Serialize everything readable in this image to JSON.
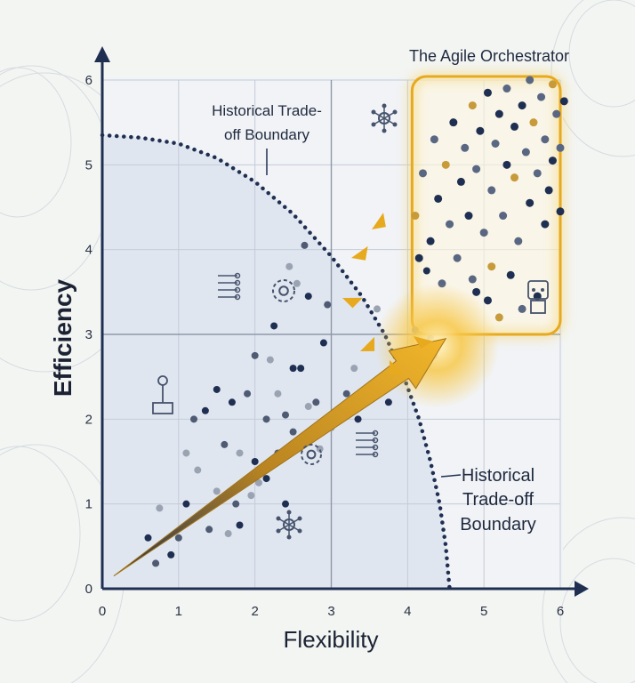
{
  "chart_data": {
    "type": "scatter",
    "xlabel": "Flexibility",
    "ylabel": "Efficiency",
    "xlim": [
      0,
      6
    ],
    "ylim": [
      0,
      6
    ],
    "xticks": [
      "0",
      "1",
      "2",
      "3",
      "4",
      "5",
      "6"
    ],
    "yticks": [
      "0",
      "1",
      "2",
      "3",
      "4",
      "5",
      "6"
    ],
    "grid": true,
    "annotations": [
      {
        "id": "boundary-top",
        "lines": [
          "Historical Trade-",
          "off Boundary"
        ]
      },
      {
        "id": "boundary-right",
        "lines": [
          "Historical",
          "Trade-off",
          "Boundary"
        ]
      },
      {
        "id": "highlight",
        "lines": [
          "The Agile Orchestrator"
        ]
      }
    ],
    "boundary": {
      "name": "Historical Trade-off Boundary",
      "points": [
        [
          0,
          5.35
        ],
        [
          0.5,
          5.32
        ],
        [
          1,
          5.25
        ],
        [
          1.5,
          5.08
        ],
        [
          2,
          4.8
        ],
        [
          2.5,
          4.42
        ],
        [
          3,
          3.92
        ],
        [
          3.4,
          3.45
        ],
        [
          3.7,
          3.0
        ],
        [
          3.95,
          2.5
        ],
        [
          4.15,
          2.0
        ],
        [
          4.3,
          1.5
        ],
        [
          4.42,
          1.0
        ],
        [
          4.5,
          0.5
        ],
        [
          4.55,
          0
        ]
      ]
    },
    "highlight_region": {
      "label": "The Agile Orchestrator",
      "x": [
        4.0,
        6.0
      ],
      "y": [
        3.0,
        6.0
      ]
    },
    "trend_arrow": {
      "from": [
        0.15,
        0.15
      ],
      "to": [
        4.5,
        2.95
      ]
    },
    "scattered_points": [
      {
        "x": 0.6,
        "y": 0.6
      },
      {
        "x": 0.7,
        "y": 0.3
      },
      {
        "x": 0.75,
        "y": 0.95
      },
      {
        "x": 0.9,
        "y": 0.4
      },
      {
        "x": 1.0,
        "y": 0.6
      },
      {
        "x": 1.1,
        "y": 1.6
      },
      {
        "x": 1.1,
        "y": 1.0
      },
      {
        "x": 1.2,
        "y": 2.0
      },
      {
        "x": 1.25,
        "y": 1.4
      },
      {
        "x": 1.35,
        "y": 2.1
      },
      {
        "x": 1.4,
        "y": 0.7
      },
      {
        "x": 1.5,
        "y": 1.15
      },
      {
        "x": 1.5,
        "y": 2.35
      },
      {
        "x": 1.6,
        "y": 1.7
      },
      {
        "x": 1.65,
        "y": 0.65
      },
      {
        "x": 1.7,
        "y": 2.2
      },
      {
        "x": 1.75,
        "y": 1.0
      },
      {
        "x": 1.8,
        "y": 1.6
      },
      {
        "x": 1.8,
        "y": 0.75
      },
      {
        "x": 1.9,
        "y": 2.3
      },
      {
        "x": 1.95,
        "y": 1.1
      },
      {
        "x": 2.0,
        "y": 1.5
      },
      {
        "x": 2.0,
        "y": 2.75
      },
      {
        "x": 2.05,
        "y": 1.25
      },
      {
        "x": 2.15,
        "y": 1.3
      },
      {
        "x": 2.15,
        "y": 2.0
      },
      {
        "x": 2.2,
        "y": 2.7
      },
      {
        "x": 2.25,
        "y": 3.1
      },
      {
        "x": 2.3,
        "y": 1.6
      },
      {
        "x": 2.3,
        "y": 2.3
      },
      {
        "x": 2.4,
        "y": 1.0
      },
      {
        "x": 2.4,
        "y": 2.05
      },
      {
        "x": 2.45,
        "y": 3.8
      },
      {
        "x": 2.5,
        "y": 2.6
      },
      {
        "x": 2.5,
        "y": 1.85
      },
      {
        "x": 2.55,
        "y": 3.6
      },
      {
        "x": 2.6,
        "y": 2.6
      },
      {
        "x": 2.65,
        "y": 4.05
      },
      {
        "x": 2.7,
        "y": 2.15
      },
      {
        "x": 2.7,
        "y": 3.45
      },
      {
        "x": 2.8,
        "y": 2.2
      },
      {
        "x": 2.85,
        "y": 1.65
      },
      {
        "x": 2.9,
        "y": 2.9
      },
      {
        "x": 2.95,
        "y": 3.35
      },
      {
        "x": 3.0,
        "y": 1.9
      },
      {
        "x": 3.1,
        "y": 2.1
      },
      {
        "x": 3.2,
        "y": 2.3
      },
      {
        "x": 3.3,
        "y": 2.6
      },
      {
        "x": 3.35,
        "y": 2.0
      },
      {
        "x": 3.5,
        "y": 2.85
      },
      {
        "x": 3.6,
        "y": 3.3
      },
      {
        "x": 3.75,
        "y": 2.2
      },
      {
        "x": 4.35,
        "y": 2.75
      },
      {
        "x": 4.1,
        "y": 3.05
      },
      {
        "x": 4.25,
        "y": 3.75
      },
      {
        "x": 4.3,
        "y": 2.95
      }
    ],
    "cluster_points": [
      {
        "x": 4.1,
        "y": 4.4
      },
      {
        "x": 4.15,
        "y": 3.9
      },
      {
        "x": 4.2,
        "y": 4.9
      },
      {
        "x": 4.3,
        "y": 4.1
      },
      {
        "x": 4.35,
        "y": 5.3
      },
      {
        "x": 4.4,
        "y": 4.6
      },
      {
        "x": 4.45,
        "y": 3.6
      },
      {
        "x": 4.5,
        "y": 5.0
      },
      {
        "x": 4.55,
        "y": 4.3
      },
      {
        "x": 4.6,
        "y": 5.5
      },
      {
        "x": 4.65,
        "y": 3.9
      },
      {
        "x": 4.7,
        "y": 4.8
      },
      {
        "x": 4.75,
        "y": 5.2
      },
      {
        "x": 4.8,
        "y": 4.4
      },
      {
        "x": 4.85,
        "y": 5.7
      },
      {
        "x": 4.9,
        "y": 3.5
      },
      {
        "x": 4.9,
        "y": 4.95
      },
      {
        "x": 4.95,
        "y": 5.4
      },
      {
        "x": 5.0,
        "y": 4.2
      },
      {
        "x": 5.05,
        "y": 5.85
      },
      {
        "x": 5.1,
        "y": 4.7
      },
      {
        "x": 5.1,
        "y": 3.8
      },
      {
        "x": 5.15,
        "y": 5.25
      },
      {
        "x": 5.2,
        "y": 5.6
      },
      {
        "x": 5.25,
        "y": 4.4
      },
      {
        "x": 5.3,
        "y": 5.0
      },
      {
        "x": 5.3,
        "y": 5.9
      },
      {
        "x": 5.35,
        "y": 3.7
      },
      {
        "x": 5.4,
        "y": 4.85
      },
      {
        "x": 5.4,
        "y": 5.45
      },
      {
        "x": 5.45,
        "y": 4.1
      },
      {
        "x": 5.5,
        "y": 5.7
      },
      {
        "x": 5.55,
        "y": 5.15
      },
      {
        "x": 5.6,
        "y": 4.55
      },
      {
        "x": 5.6,
        "y": 6.0
      },
      {
        "x": 5.65,
        "y": 5.5
      },
      {
        "x": 5.7,
        "y": 4.9
      },
      {
        "x": 5.7,
        "y": 3.45
      },
      {
        "x": 5.75,
        "y": 5.8
      },
      {
        "x": 5.8,
        "y": 4.3
      },
      {
        "x": 5.8,
        "y": 5.3
      },
      {
        "x": 5.85,
        "y": 4.7
      },
      {
        "x": 5.9,
        "y": 5.95
      },
      {
        "x": 5.9,
        "y": 5.05
      },
      {
        "x": 5.95,
        "y": 5.6
      },
      {
        "x": 6.0,
        "y": 4.45
      },
      {
        "x": 6.0,
        "y": 5.2
      },
      {
        "x": 6.05,
        "y": 5.75
      },
      {
        "x": 5.5,
        "y": 3.3
      },
      {
        "x": 5.2,
        "y": 3.2
      },
      {
        "x": 4.85,
        "y": 3.65
      },
      {
        "x": 5.05,
        "y": 3.4
      }
    ],
    "colors": {
      "navy": "#1f2f52",
      "gold": "#e7a91d",
      "gold_light": "#f5cf5a",
      "grid": "#c4ccd8",
      "region": "#dde3ee",
      "gray_point": "#9aa3b2"
    },
    "icons": [
      "network-icon",
      "gear-icon",
      "circuit-icon",
      "robot-arm-icon",
      "robot-icon"
    ]
  }
}
